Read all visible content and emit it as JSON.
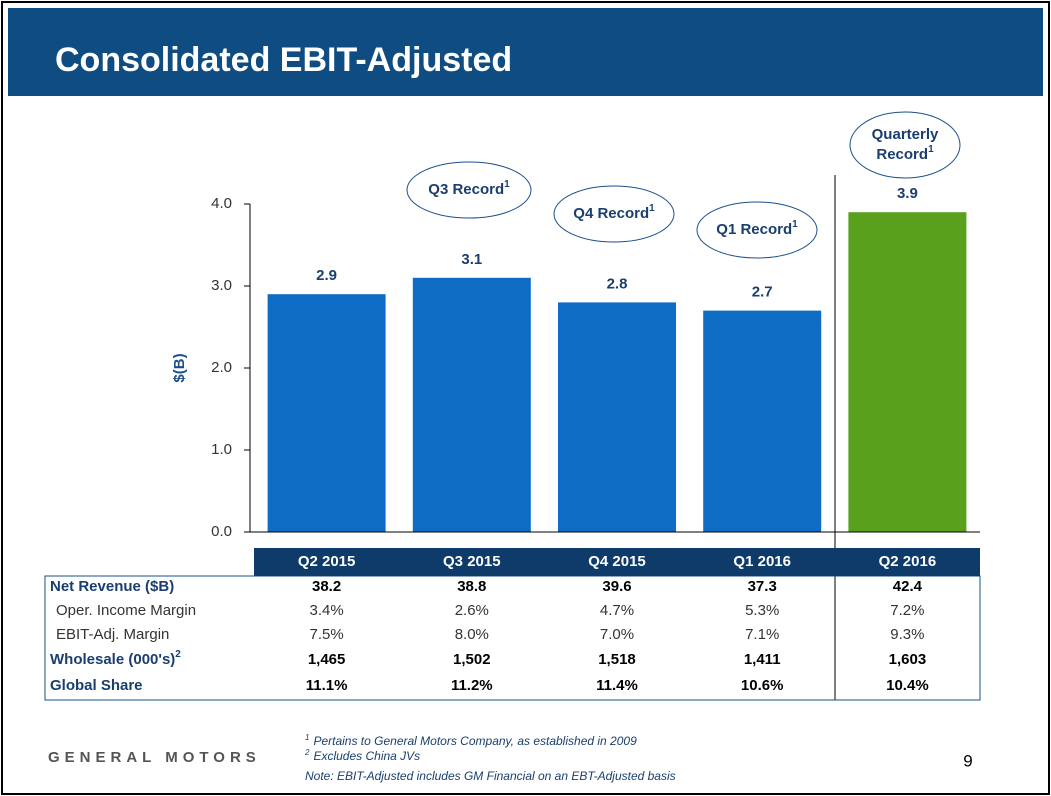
{
  "chart_data": {
    "type": "bar",
    "title": "Consolidated EBIT-Adjusted",
    "y_label": "$(B)",
    "categories": [
      "Q2 2015",
      "Q3 2015",
      "Q4 2015",
      "Q1 2016",
      "Q2 2016"
    ],
    "values": [
      2.9,
      3.1,
      2.8,
      2.7,
      3.9
    ],
    "colors": [
      "#0f6cc4",
      "#0f6cc4",
      "#0f6cc4",
      "#0f6cc4",
      "#59a01c"
    ],
    "ylim": [
      0,
      4
    ],
    "yticks": [
      {
        "value": 0,
        "label": "0.0"
      },
      {
        "value": 1,
        "label": "1.0"
      },
      {
        "value": 2,
        "label": "2.0"
      },
      {
        "value": 3,
        "label": "3.0"
      },
      {
        "value": 4,
        "label": "4.0"
      }
    ],
    "annotations": [
      {
        "lines": [
          "Q3 Record"
        ],
        "note": "1"
      },
      {
        "lines": [
          "Q4 Record"
        ],
        "note": "1"
      },
      {
        "lines": [
          "Q1 Record"
        ],
        "note": "1"
      },
      {
        "lines": [
          "Quarterly",
          "Record"
        ],
        "note": "1"
      }
    ]
  },
  "table": {
    "rows": [
      {
        "label": "Net Revenue ($B)",
        "bold": true,
        "values": [
          "38.2",
          "38.8",
          "39.6",
          "37.3",
          "42.4"
        ]
      },
      {
        "label": "Oper. Income Margin",
        "bold": false,
        "values": [
          "3.4%",
          "2.6%",
          "4.7%",
          "5.3%",
          "7.2%"
        ]
      },
      {
        "label": "EBIT-Adj. Margin",
        "bold": false,
        "values": [
          "7.5%",
          "8.0%",
          "7.0%",
          "7.1%",
          "9.3%"
        ]
      },
      {
        "label": "Wholesale (000's)",
        "note": "2",
        "bold": true,
        "values": [
          "1,465",
          "1,502",
          "1,518",
          "1,411",
          "1,603"
        ]
      },
      {
        "label": "Global Share",
        "bold": true,
        "values": [
          "11.1%",
          "11.2%",
          "11.4%",
          "10.6%",
          "10.4%"
        ]
      }
    ]
  },
  "footer": {
    "logo": "GENERAL MOTORS",
    "page": "9",
    "footnotes": [
      {
        "mark": "1",
        "text": "Pertains to General Motors Company, as established in 2009"
      },
      {
        "mark": "2",
        "text": "Excludes China JVs"
      }
    ],
    "note": "Note:  EBIT-Adjusted includes GM Financial on an EBT-Adjusted basis"
  }
}
